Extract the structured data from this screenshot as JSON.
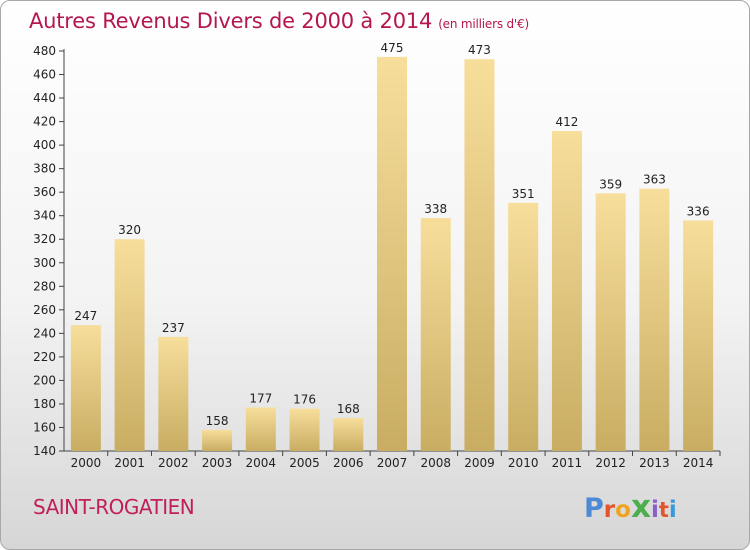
{
  "title": "Autres Revenus Divers de 2000 à 2014",
  "unit": "(en milliers d'€)",
  "location": "SAINT-ROGATIEN",
  "logo": "Proxiti",
  "colors": {
    "title": "#b5164f",
    "bar_light": "#f7de9b",
    "bar_dark": "#c8ad62",
    "logo": [
      "#4d8ad6",
      "#e3542c",
      "#f1a21c",
      "#4cae4c",
      "#8b5fc7",
      "#e3542c",
      "#3a9ad9"
    ]
  },
  "chart_data": {
    "type": "bar",
    "title": "Autres Revenus Divers de 2000 à 2014",
    "subtitle": "(en milliers d'€)",
    "categories": [
      "2000",
      "2001",
      "2002",
      "2003",
      "2004",
      "2005",
      "2006",
      "2007",
      "2008",
      "2009",
      "2010",
      "2011",
      "2012",
      "2013",
      "2014"
    ],
    "values": [
      247,
      320,
      237,
      158,
      177,
      176,
      168,
      475,
      338,
      473,
      351,
      412,
      359,
      363,
      336
    ],
    "ylim": [
      140,
      480
    ],
    "yticks": [
      140,
      160,
      180,
      200,
      220,
      240,
      260,
      280,
      300,
      320,
      340,
      360,
      380,
      400,
      420,
      440,
      460,
      480
    ],
    "grid": false,
    "legend": "none"
  }
}
